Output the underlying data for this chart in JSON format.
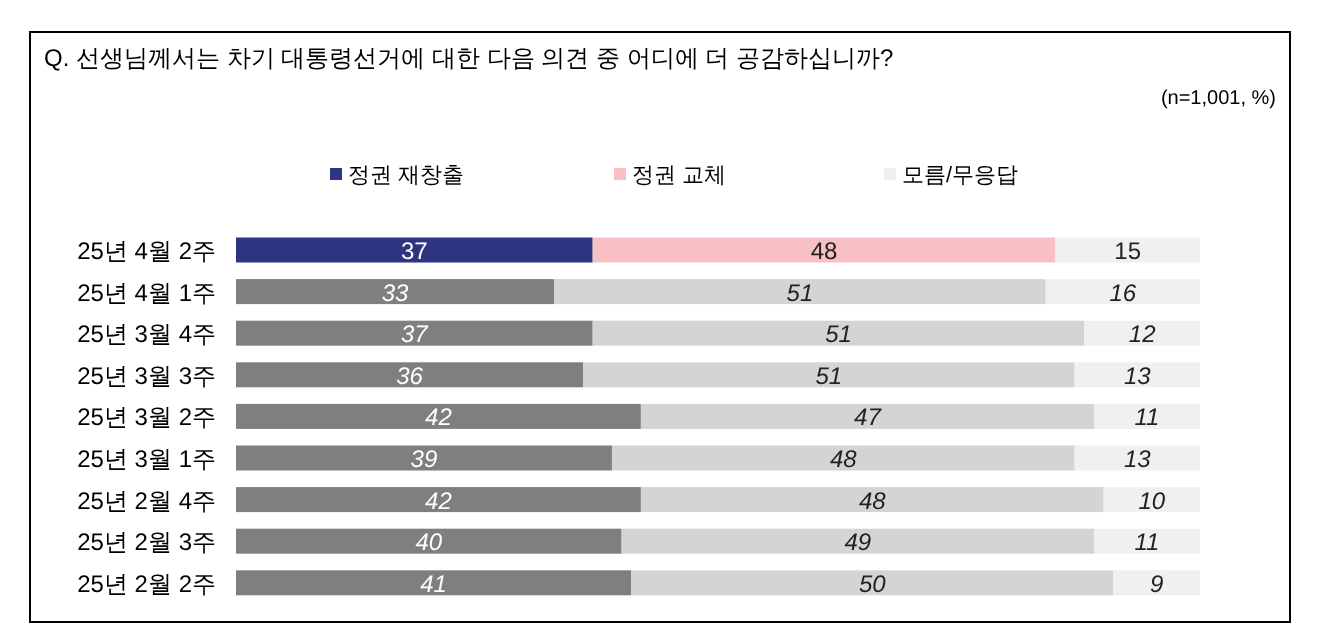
{
  "chart_data": {
    "type": "bar",
    "orientation": "horizontal",
    "stacked": true,
    "data_labels": true,
    "legend": "top",
    "tick_labels": "y",
    "title": "Q. 선생님께서는 차기 대통령선거에 대한 다음 의견 중 어디에 더 공감하십니까?",
    "annotations": [
      "(n=1,001, %)"
    ],
    "categories": [
      "25년 4월 2주",
      "25년 4월 1주",
      "25년 3월 4주",
      "25년 3월 3주",
      "25년 3월 2주",
      "25년 3월 1주",
      "25년 2월 4주",
      "25년 2월 3주",
      "25년 2월 2주"
    ],
    "series": [
      {
        "name": "정권 재창출",
        "color": "#2e3580",
        "colors": [
          "#2e3580",
          "#7f7f7f",
          "#7f7f7f",
          "#7f7f7f",
          "#7f7f7f",
          "#7f7f7f",
          "#7f7f7f",
          "#7f7f7f",
          "#7f7f7f"
        ],
        "values": [
          37,
          33,
          37,
          36,
          42,
          39,
          42,
          40,
          41
        ]
      },
      {
        "name": "정권 교체",
        "color": "#f8c0c4",
        "colors": [
          "#f8c0c4",
          "#d4d4d4",
          "#d4d4d4",
          "#d4d4d4",
          "#d4d4d4",
          "#d4d4d4",
          "#d4d4d4",
          "#d4d4d4",
          "#d4d4d4"
        ],
        "values": [
          48,
          51,
          51,
          51,
          47,
          48,
          48,
          49,
          50
        ]
      },
      {
        "name": "모름/무응답",
        "color": "#f0f0f0",
        "colors": [
          "#f0f0f0",
          "#f0f0f0",
          "#f0f0f0",
          "#f0f0f0",
          "#f0f0f0",
          "#f0f0f0",
          "#f0f0f0",
          "#f0f0f0",
          "#f0f0f0"
        ],
        "values": [
          15,
          16,
          12,
          13,
          11,
          13,
          10,
          11,
          9
        ]
      }
    ]
  }
}
